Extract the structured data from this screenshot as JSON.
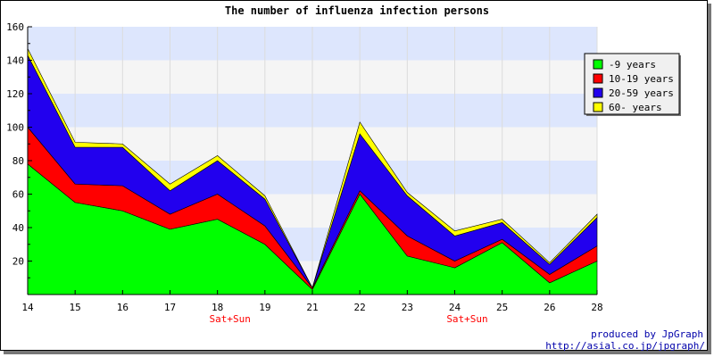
{
  "credits": {
    "line1": "produced by JpGraph",
    "line2": "http://asial.co.jp/jpgraph/"
  },
  "weekend_label": "Sat+Sun",
  "colors": {
    "band_light": "#f5f5f5",
    "band_blue": "#dde6fd",
    "axis": "#000000",
    "frame_shadow": "#777777",
    "weekend_label": "#ff0000",
    "credit": "#0000aa"
  },
  "chart_data": {
    "type": "area",
    "stacked": true,
    "title": "The number of influenza infection persons",
    "xlabel": "",
    "ylabel": "",
    "categories": [
      "14",
      "15",
      "16",
      "17",
      "18",
      "19",
      "21",
      "22",
      "23",
      "24",
      "25",
      "26",
      "28"
    ],
    "weekend_markers": [
      "18",
      "24"
    ],
    "ylim": [
      0,
      160
    ],
    "yticks": [
      20,
      40,
      60,
      80,
      100,
      120,
      140,
      160
    ],
    "grid": "horizontal bands",
    "legend_position": "top-right",
    "series": [
      {
        "name": "-9 years",
        "color": "#00ff00",
        "values": [
          78,
          55,
          50,
          39,
          45,
          30,
          3,
          60,
          23,
          16,
          31,
          7,
          20
        ]
      },
      {
        "name": "10-19 years",
        "color": "#ff0000",
        "values": [
          22,
          11,
          15,
          9,
          15,
          11,
          1,
          2,
          12,
          4,
          2,
          5,
          9
        ]
      },
      {
        "name": "20-59 years",
        "color": "#2200ee",
        "values": [
          43,
          22,
          23,
          14,
          20,
          16,
          0,
          34,
          24,
          15,
          10,
          6,
          17
        ]
      },
      {
        "name": "60- years",
        "color": "#ffff00",
        "values": [
          4,
          3,
          2,
          4,
          3,
          2,
          0,
          7,
          2,
          3,
          2,
          1,
          2
        ]
      }
    ]
  }
}
